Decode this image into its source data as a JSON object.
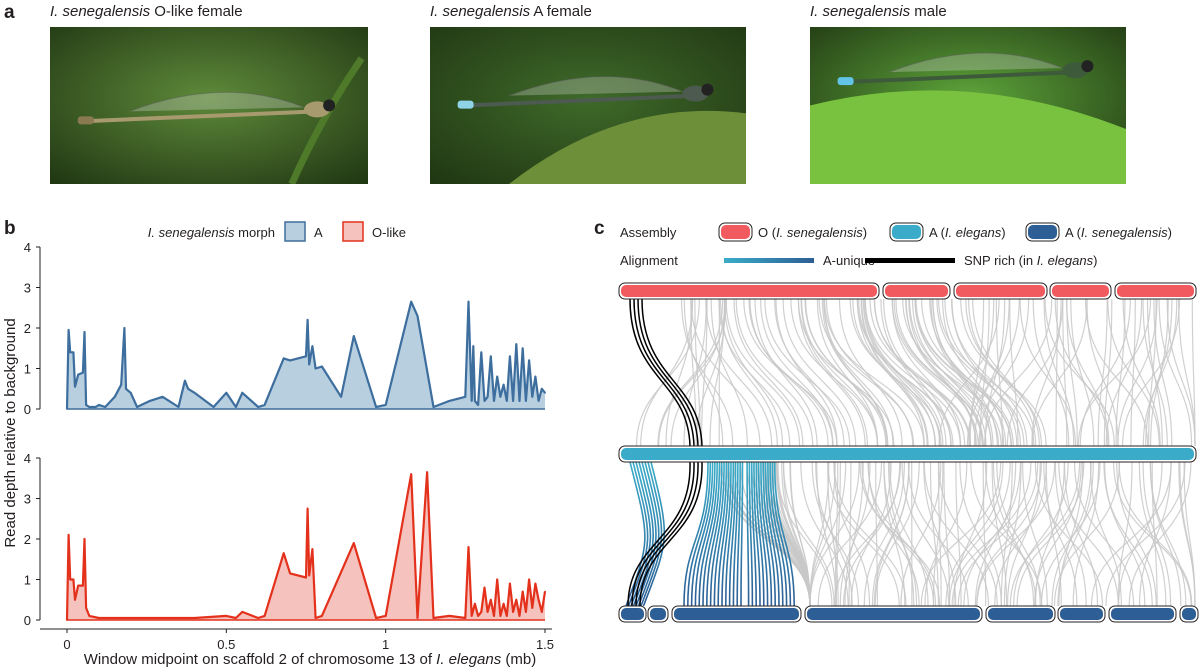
{
  "panel_a": {
    "letter": "a",
    "photos": [
      {
        "species": "I. senegalensis",
        "label": " O-like female",
        "body": "#a79a6f",
        "bg": "#5e8a3a",
        "tip": "#8a7a52"
      },
      {
        "species": "I. senegalensis",
        "label": " A female",
        "body": "#4d5a50",
        "bg": "#3f6a2a",
        "tip": "#8fd3e6"
      },
      {
        "species": "I. senegalensis",
        "label": " male",
        "body": "#3d5a3a",
        "bg": "#5da43a",
        "tip": "#62c4e6"
      }
    ]
  },
  "panel_b": {
    "letter": "b",
    "legend_title_italic": "I. senegalensis",
    "legend_title_rest": " morph",
    "ylabel": "Read depth relative to background",
    "xlabel_pre": "Window midpoint on scaffold 2 of chromosome 13 of ",
    "xlabel_italic": "I. elegans",
    "xlabel_post": " (mb)",
    "x_ticks": [
      "0",
      "0.5",
      "1",
      "1.5"
    ],
    "y_ticks": [
      "0",
      "1",
      "2",
      "3",
      "4"
    ]
  },
  "chart_data": {
    "type": "area",
    "xlim": [
      0,
      1.5
    ],
    "ylim": [
      0,
      4
    ],
    "xtick_values": [
      0,
      0.5,
      1,
      1.5
    ],
    "ytick_values": [
      0,
      1,
      2,
      3,
      4
    ],
    "series": [
      {
        "name": "A",
        "color": "#3d6e9e",
        "fill": "#b8cfe0",
        "x": [
          0.0,
          0.005,
          0.01,
          0.02,
          0.025,
          0.035,
          0.05,
          0.055,
          0.06,
          0.07,
          0.09,
          0.1,
          0.12,
          0.15,
          0.17,
          0.18,
          0.185,
          0.2,
          0.22,
          0.26,
          0.3,
          0.35,
          0.37,
          0.38,
          0.4,
          0.46,
          0.5,
          0.53,
          0.55,
          0.6,
          0.62,
          0.68,
          0.7,
          0.75,
          0.755,
          0.76,
          0.77,
          0.78,
          0.8,
          0.86,
          0.9,
          0.97,
          1.0,
          1.08,
          1.1,
          1.15,
          1.2,
          1.25,
          1.26,
          1.27,
          1.275,
          1.28,
          1.29,
          1.3,
          1.31,
          1.32,
          1.33,
          1.34,
          1.35,
          1.36,
          1.37,
          1.38,
          1.39,
          1.4,
          1.41,
          1.42,
          1.43,
          1.44,
          1.45,
          1.46,
          1.47,
          1.48,
          1.49,
          1.5
        ],
        "y": [
          0.0,
          1.95,
          1.4,
          1.4,
          0.55,
          0.85,
          0.9,
          1.9,
          0.1,
          0.05,
          0.05,
          0.1,
          0.05,
          0.3,
          0.6,
          2.0,
          0.5,
          0.4,
          0.05,
          0.2,
          0.3,
          0.05,
          0.7,
          0.5,
          0.4,
          0.05,
          0.4,
          0.05,
          0.4,
          0.05,
          0.1,
          1.25,
          1.2,
          1.3,
          2.2,
          1.1,
          1.55,
          1.0,
          1.05,
          0.3,
          1.8,
          0.05,
          0.1,
          2.65,
          2.3,
          0.05,
          0.2,
          0.3,
          2.65,
          0.2,
          1.55,
          0.2,
          0.1,
          1.4,
          0.2,
          0.3,
          1.3,
          0.2,
          0.8,
          0.3,
          0.6,
          0.2,
          1.3,
          0.2,
          1.6,
          0.2,
          1.5,
          0.2,
          1.2,
          0.3,
          0.8,
          0.2,
          0.5,
          0.4
        ]
      },
      {
        "name": "O-like",
        "color": "#e3311c",
        "fill": "#f6c2bd",
        "x": [
          0.0,
          0.005,
          0.01,
          0.02,
          0.025,
          0.035,
          0.05,
          0.055,
          0.06,
          0.07,
          0.1,
          0.2,
          0.4,
          0.5,
          0.53,
          0.55,
          0.6,
          0.62,
          0.68,
          0.7,
          0.75,
          0.755,
          0.76,
          0.77,
          0.78,
          0.8,
          0.9,
          0.97,
          1.0,
          1.08,
          1.1,
          1.13,
          1.15,
          1.2,
          1.25,
          1.26,
          1.27,
          1.28,
          1.29,
          1.3,
          1.31,
          1.32,
          1.33,
          1.34,
          1.35,
          1.36,
          1.37,
          1.38,
          1.39,
          1.4,
          1.41,
          1.42,
          1.43,
          1.44,
          1.45,
          1.46,
          1.47,
          1.48,
          1.49,
          1.5
        ],
        "y": [
          0.0,
          2.1,
          1.0,
          1.0,
          0.5,
          0.85,
          0.85,
          2.0,
          0.3,
          0.1,
          0.05,
          0.05,
          0.05,
          0.1,
          0.05,
          0.2,
          0.05,
          0.1,
          1.65,
          1.15,
          1.05,
          2.75,
          1.1,
          1.75,
          0.05,
          0.1,
          1.9,
          0.05,
          0.1,
          3.6,
          0.05,
          3.65,
          0.05,
          0.1,
          0.05,
          1.8,
          0.1,
          0.4,
          0.1,
          0.2,
          0.8,
          0.2,
          0.5,
          0.1,
          1.0,
          0.1,
          0.4,
          0.1,
          0.9,
          0.2,
          0.5,
          0.1,
          0.7,
          0.2,
          1.0,
          0.3,
          0.9,
          0.5,
          0.2,
          0.7
        ]
      }
    ]
  },
  "panel_c": {
    "letter": "c",
    "assembly_label": "Assembly",
    "alignment_label": "Alignment",
    "assemblies": [
      {
        "pre": "O (",
        "italic": "I. senegalensis",
        "post": ")",
        "color": "#f15a5e"
      },
      {
        "pre": "A (",
        "italic": "I. elegans",
        "post": ")",
        "color": "#3aacc9"
      },
      {
        "pre": "A (",
        "italic": "I. senegalensis",
        "post": ")",
        "color": "#2d5e95"
      }
    ],
    "alignments": [
      {
        "text": "A-unique",
        "color": "#3a8ab8"
      },
      {
        "pre": "SNP rich (in ",
        "italic": "I. elegans",
        "post": ")",
        "color": "#000000"
      }
    ],
    "colors": {
      "top": "#f15a5e",
      "middle": "#3aacc9",
      "bottom": "#2d5e95",
      "links": "#c8c8c8"
    }
  }
}
